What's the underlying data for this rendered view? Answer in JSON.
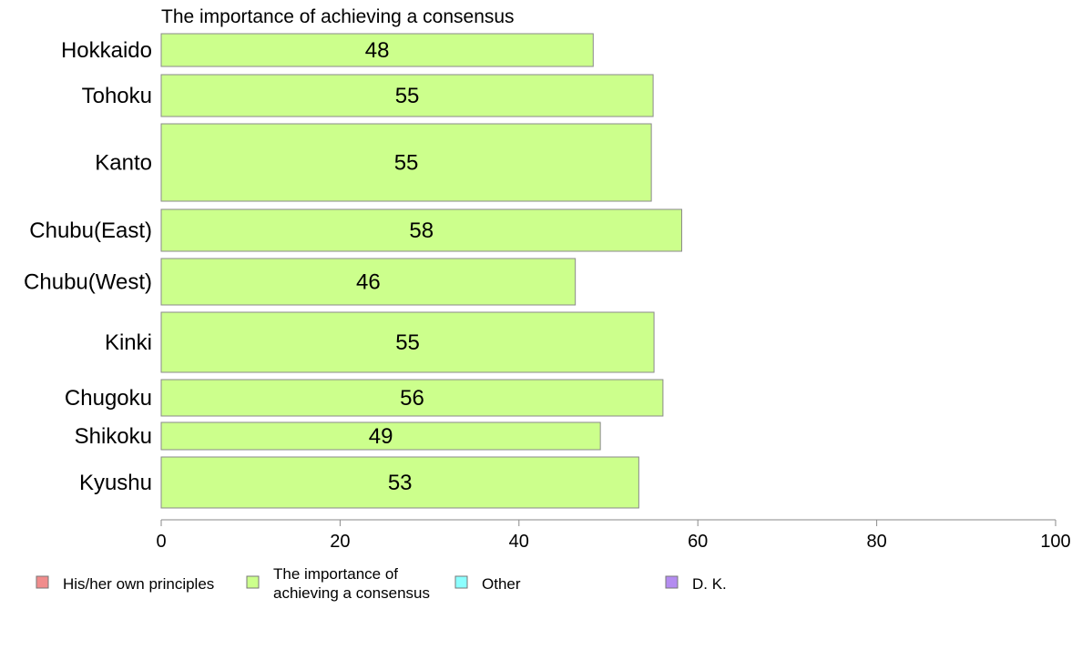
{
  "chart_data": {
    "type": "bar",
    "orientation": "horizontal",
    "title": "The importance of achieving a consensus",
    "categories": [
      "Hokkaido",
      "Tohoku",
      "Kanto",
      "Chubu(East)",
      "Chubu(West)",
      "Kinki",
      "Chugoku",
      "Shikoku",
      "Kyushu"
    ],
    "values": [
      48.3,
      55.0,
      54.8,
      58.2,
      46.3,
      55.1,
      56.1,
      49.1,
      53.4
    ],
    "value_labels": [
      "48",
      "55",
      "55",
      "58",
      "46",
      "55",
      "56",
      "49",
      "53"
    ],
    "bar_color": "#ccff8c",
    "xlim": [
      0,
      100
    ],
    "xticks": [
      0,
      20,
      40,
      60,
      80,
      100
    ],
    "xtick_labels": [
      "0",
      "20",
      "40",
      "60",
      "80",
      "100"
    ],
    "grid": false,
    "legend_position": "bottom",
    "legend": [
      {
        "label": "His/her own principles",
        "color": "#f08c8c"
      },
      {
        "label": "The importance of achieving a consensus",
        "lines": [
          "The importance of",
          "achieving a consensus"
        ],
        "color": "#ccff8c"
      },
      {
        "label": "Other",
        "color": "#8cffff"
      },
      {
        "label": "D. K.",
        "color": "#b48cf0"
      }
    ]
  }
}
